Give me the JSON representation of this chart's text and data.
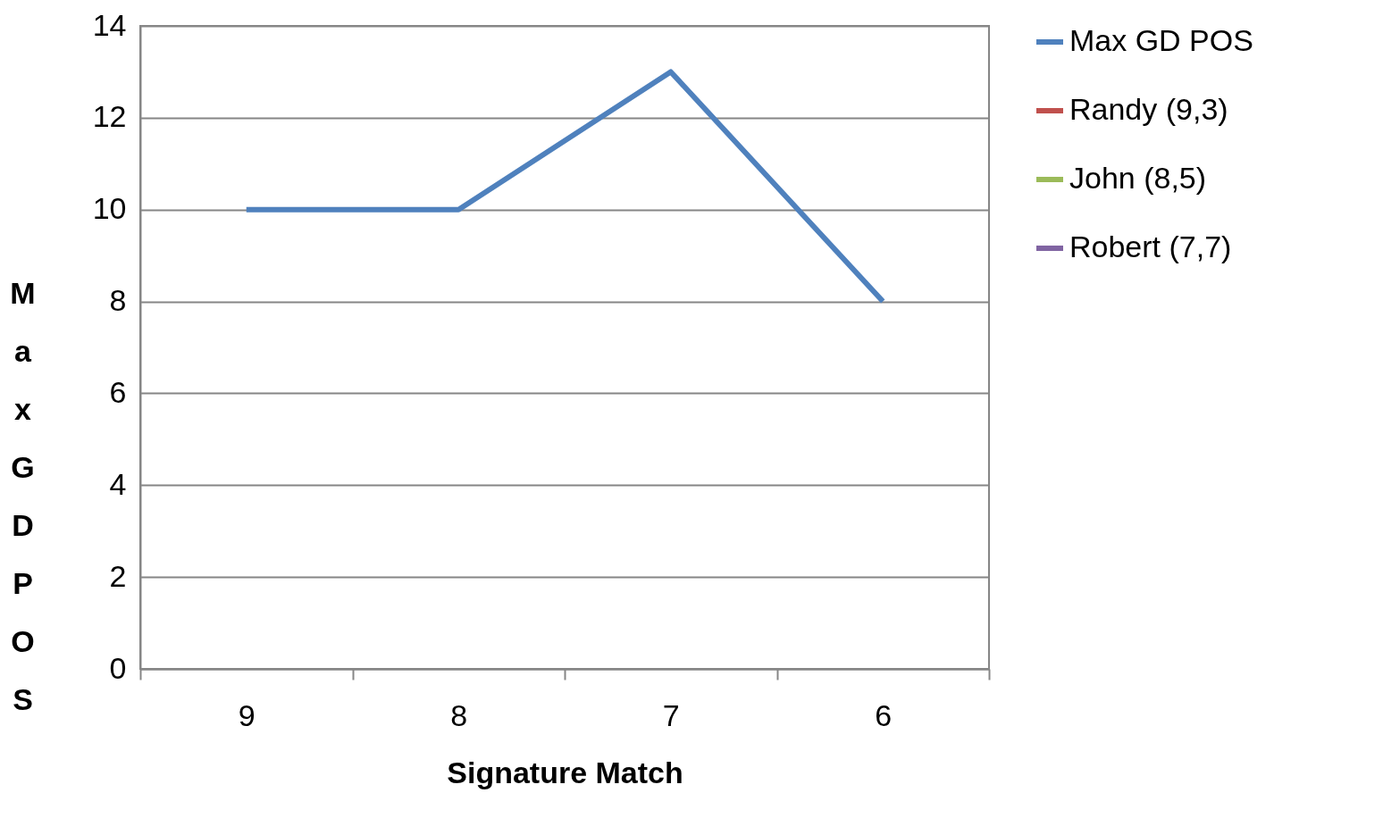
{
  "chart_data": {
    "type": "line",
    "xlabel": "Signature Match",
    "ylabel": "Max GD POS",
    "categories": [
      "9",
      "8",
      "7",
      "6"
    ],
    "series": [
      {
        "name": "Max GD POS",
        "color": "#4f81bd",
        "values": [
          10,
          10,
          13,
          8
        ]
      },
      {
        "name": "Randy (9,3)",
        "color": "#c0504d",
        "values": [
          null,
          null,
          null,
          null
        ]
      },
      {
        "name": "John (8,5)",
        "color": "#9bbb59",
        "values": [
          null,
          null,
          null,
          null
        ]
      },
      {
        "name": "Robert (7,7)",
        "color": "#8064a2",
        "values": [
          null,
          null,
          null,
          null
        ]
      }
    ],
    "ylim": [
      0,
      14
    ],
    "yticks": [
      0,
      2,
      4,
      6,
      8,
      10,
      12,
      14
    ],
    "grid": "y",
    "legend": "right"
  }
}
